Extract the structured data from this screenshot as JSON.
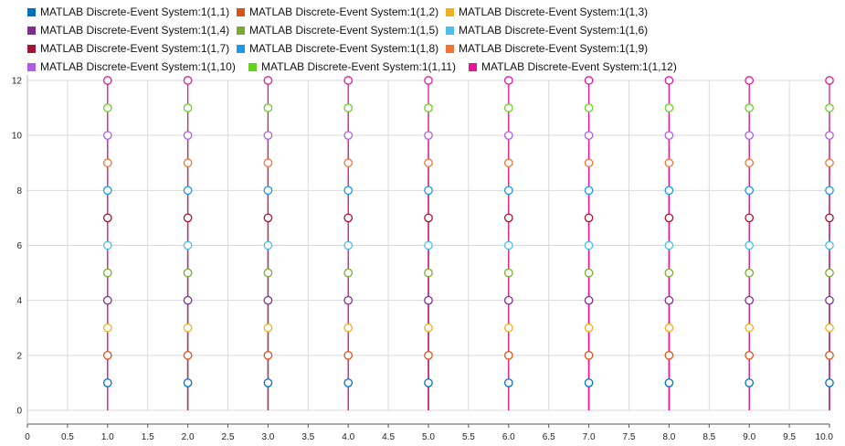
{
  "chart_data": {
    "type": "scatter",
    "style": "stem",
    "title": "",
    "xlabel": "",
    "ylabel": "",
    "xlim": [
      0,
      10
    ],
    "ylim": [
      0,
      12
    ],
    "x_ticks": [
      "0",
      "0.5",
      "1.0",
      "1.5",
      "2.0",
      "2.5",
      "3.0",
      "3.5",
      "4.0",
      "4.5",
      "5.0",
      "5.5",
      "6.0",
      "6.5",
      "7.0",
      "7.5",
      "8.0",
      "8.5",
      "9.0",
      "9.5",
      "10.0"
    ],
    "y_ticks": [
      "0",
      "2",
      "4",
      "6",
      "8",
      "10",
      "12"
    ],
    "grid": true,
    "legend_position": "top",
    "x": [
      1,
      2,
      3,
      4,
      5,
      6,
      7,
      8,
      9,
      10
    ],
    "series": [
      {
        "name": "MATLAB Discrete-Event System:1(1,1)",
        "color": "#0072bd",
        "values": [
          1,
          1,
          1,
          1,
          1,
          1,
          1,
          1,
          1,
          1
        ]
      },
      {
        "name": "MATLAB Discrete-Event System:1(1,2)",
        "color": "#d95319",
        "values": [
          2,
          2,
          2,
          2,
          2,
          2,
          2,
          2,
          2,
          2
        ]
      },
      {
        "name": "MATLAB Discrete-Event System:1(1,3)",
        "color": "#edb120",
        "values": [
          3,
          3,
          3,
          3,
          3,
          3,
          3,
          3,
          3,
          3
        ]
      },
      {
        "name": "MATLAB Discrete-Event System:1(1,4)",
        "color": "#7e2f8e",
        "values": [
          4,
          4,
          4,
          4,
          4,
          4,
          4,
          4,
          4,
          4
        ]
      },
      {
        "name": "MATLAB Discrete-Event System:1(1,5)",
        "color": "#77ac30",
        "values": [
          5,
          5,
          5,
          5,
          5,
          5,
          5,
          5,
          5,
          5
        ]
      },
      {
        "name": "MATLAB Discrete-Event System:1(1,6)",
        "color": "#4dbeee",
        "values": [
          6,
          6,
          6,
          6,
          6,
          6,
          6,
          6,
          6,
          6
        ]
      },
      {
        "name": "MATLAB Discrete-Event System:1(1,7)",
        "color": "#a2142f",
        "values": [
          7,
          7,
          7,
          7,
          7,
          7,
          7,
          7,
          7,
          7
        ]
      },
      {
        "name": "MATLAB Discrete-Event System:1(1,8)",
        "color": "#1a9ae6",
        "values": [
          8,
          8,
          8,
          8,
          8,
          8,
          8,
          8,
          8,
          8
        ]
      },
      {
        "name": "MATLAB Discrete-Event System:1(1,9)",
        "color": "#f0733a",
        "values": [
          9,
          9,
          9,
          9,
          9,
          9,
          9,
          9,
          9,
          9
        ]
      },
      {
        "name": "MATLAB Discrete-Event System:1(1,10)",
        "color": "#b05ce6",
        "values": [
          10,
          10,
          10,
          10,
          10,
          10,
          10,
          10,
          10,
          10
        ]
      },
      {
        "name": "MATLAB Discrete-Event System:1(1,11)",
        "color": "#64d21e",
        "values": [
          11,
          11,
          11,
          11,
          11,
          11,
          11,
          11,
          11,
          11
        ]
      },
      {
        "name": "MATLAB Discrete-Event System:1(1,12)",
        "color": "#e6149b",
        "values": [
          12,
          12,
          12,
          12,
          12,
          12,
          12,
          12,
          12,
          12
        ]
      }
    ]
  }
}
